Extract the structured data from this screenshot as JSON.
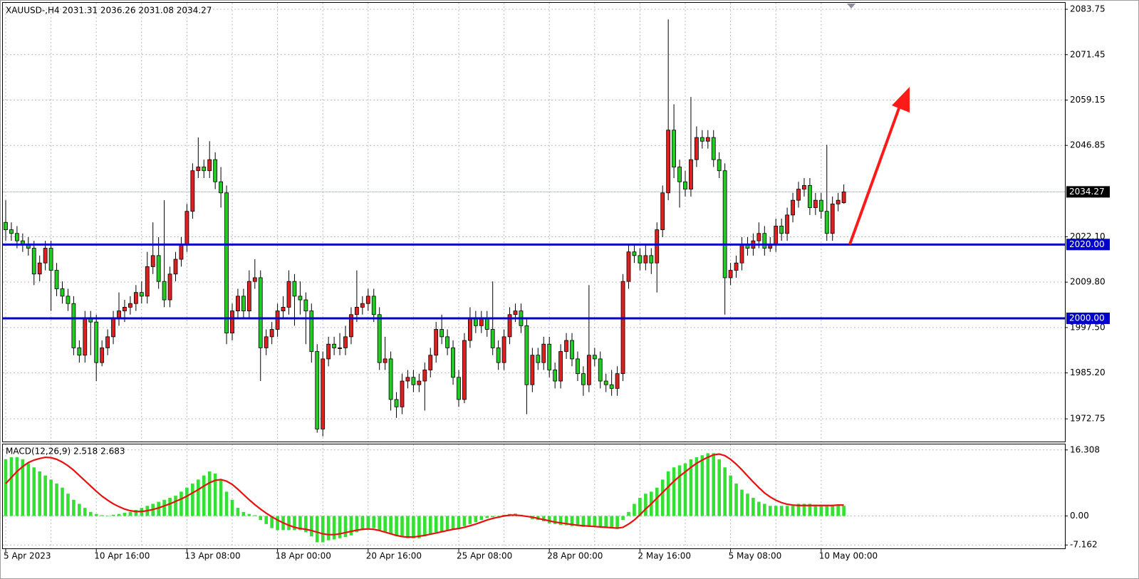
{
  "chart_data": [
    {
      "type": "candlestick",
      "title": "XAUUSD-,H4  2031.31 2036.26 2031.08 2034.27",
      "categories": [
        "5 Apr 2023",
        null,
        null,
        null,
        null,
        null,
        null,
        null,
        null,
        null,
        null,
        null,
        null,
        null,
        null,
        null,
        "10 Apr 16:00",
        null,
        null,
        null,
        null,
        null,
        null,
        null,
        null,
        null,
        null,
        null,
        null,
        null,
        null,
        null,
        "13 Apr 08:00",
        null,
        null,
        null,
        null,
        null,
        null,
        null,
        null,
        null,
        null,
        null,
        null,
        null,
        null,
        null,
        "18 Apr 00:00",
        null,
        null,
        null,
        null,
        null,
        null,
        null,
        null,
        null,
        null,
        null,
        null,
        null,
        null,
        null,
        "20 Apr 16:00",
        null,
        null,
        null,
        null,
        null,
        null,
        null,
        null,
        null,
        null,
        null,
        null,
        null,
        null,
        null,
        "25 Apr 08:00",
        null,
        null,
        null,
        null,
        null,
        null,
        null,
        null,
        null,
        null,
        null,
        null,
        null,
        null,
        null,
        "28 Apr 00:00",
        null,
        null,
        null,
        null,
        null,
        null,
        null,
        null,
        null,
        null,
        null,
        null,
        null,
        null,
        null,
        "2 May 16:00",
        null,
        null,
        null,
        null,
        null,
        null,
        null,
        null,
        null,
        null,
        null,
        null,
        null,
        null,
        null,
        "5 May 08:00",
        null,
        null,
        null,
        null,
        null,
        null,
        null,
        null,
        null,
        null,
        null,
        null,
        null,
        null,
        null,
        "10 May 00:00",
        null,
        null,
        null,
        null
      ],
      "open": [
        2026,
        2024,
        2023,
        2021,
        2020,
        2019,
        2012,
        2015,
        2019,
        2013,
        2008,
        2006,
        2004,
        1992,
        1990,
        2000,
        1999,
        1988,
        1992,
        1995,
        2000,
        2002,
        2003,
        2004,
        2007,
        2006,
        2014,
        2017,
        2010,
        2005,
        2012,
        2016,
        2020,
        2029,
        2040,
        2041,
        2040,
        2043,
        2037,
        2034,
        1996,
        2002,
        2006,
        2002,
        2010,
        2011,
        1992,
        1995,
        1997,
        2002,
        2003,
        2010,
        2006,
        2005,
        2002,
        1991,
        1970,
        1989,
        1993,
        1992,
        1992,
        1995,
        2001,
        2003,
        2004,
        2006,
        2001,
        1988,
        1989,
        1978,
        1976,
        1983,
        1984,
        1982,
        1983,
        1986,
        1990,
        1997,
        1995,
        1992,
        1984,
        1978,
        1994,
        2000,
        1998,
        2000,
        1997,
        1992,
        1988,
        1995,
        2001,
        2002,
        1998,
        1982,
        1990,
        1988,
        1993,
        1986,
        1983,
        1991,
        1994,
        1989,
        1985,
        1982,
        1990,
        1989,
        1983,
        1982,
        1981,
        1985,
        2010,
        2018,
        2017,
        2015,
        2017,
        2015,
        2024,
        2034,
        2051,
        2041,
        2037,
        2035,
        2043,
        2049,
        2048,
        2049,
        2043,
        2040,
        2011,
        2013,
        2015,
        2020,
        2019,
        2021,
        2023,
        2019,
        2020,
        2025,
        2023,
        2028,
        2032,
        2035,
        2036,
        2030,
        2032,
        2029,
        2023,
        2031,
        2031.31
      ],
      "high": [
        2032,
        2026,
        2025,
        2023,
        2022,
        2021,
        2017,
        2021,
        2021,
        2015,
        2010,
        2008,
        2006,
        1994,
        2002,
        2002,
        2001,
        1994,
        1997,
        2002,
        2007,
        2005,
        2006,
        2009,
        2010,
        2018,
        2026,
        2022,
        2032,
        2014,
        2018,
        2022,
        2031,
        2042,
        2049,
        2043,
        2048,
        2045,
        2041,
        2036,
        2004,
        2008,
        2008,
        2013,
        2016,
        2013,
        1997,
        1999,
        2004,
        2006,
        2013,
        2012,
        2010,
        2007,
        2004,
        1993,
        1991,
        1995,
        1995,
        1996,
        1998,
        2003,
        2013,
        2006,
        2008,
        2008,
        2003,
        1995,
        1991,
        1980,
        1985,
        1986,
        1986,
        1985,
        1988,
        1992,
        1999,
        2001,
        1997,
        1994,
        1986,
        1996,
        2003,
        2002,
        2002,
        2002,
        2010,
        1994,
        1997,
        2003,
        2004,
        2004,
        2000,
        1992,
        1992,
        1995,
        1995,
        1988,
        1993,
        1996,
        1996,
        1991,
        1987,
        2009,
        1992,
        1991,
        1985,
        1986,
        1987,
        2012,
        2020,
        2020,
        2019,
        2020,
        2019,
        2026,
        2036,
        2081,
        2058,
        2043,
        2040,
        2060,
        2052,
        2051,
        2051,
        2051,
        2045,
        2042,
        2015,
        2017,
        2022,
        2022,
        2023,
        2026,
        2025,
        2022,
        2027,
        2027,
        2030,
        2034,
        2037,
        2038,
        2038,
        2034,
        2034,
        2047,
        2033,
        2034,
        2036.26
      ],
      "low": [
        2021,
        2021,
        2019,
        2018,
        2017,
        2009,
        2010,
        2013,
        2002,
        2006,
        2004,
        2002,
        1990,
        1988,
        1988,
        1990,
        1983,
        1987,
        1990,
        1993,
        1998,
        1999,
        2001,
        2002,
        2004,
        2004,
        2012,
        2008,
        2003,
        2003,
        2010,
        2014,
        2018,
        2027,
        2038,
        2038,
        2038,
        2035,
        2030,
        1993,
        1994,
        2000,
        2000,
        2000,
        2008,
        1983,
        1990,
        1993,
        1995,
        2000,
        2001,
        1998,
        2001,
        1993,
        1988,
        1969,
        1968,
        1987,
        1990,
        1990,
        1990,
        1993,
        1999,
        2001,
        2002,
        1999,
        1986,
        1986,
        1975,
        1973,
        1974,
        1981,
        1980,
        1980,
        1975,
        1984,
        1988,
        1993,
        1990,
        1982,
        1976,
        1977,
        1992,
        1996,
        1996,
        1995,
        1990,
        1986,
        1986,
        1993,
        1999,
        1996,
        1974,
        1980,
        1986,
        1986,
        1984,
        1981,
        1981,
        1989,
        1987,
        1983,
        1979,
        1980,
        1987,
        1981,
        1980,
        1979,
        1979,
        1983,
        2008,
        2015,
        2013,
        2013,
        2012,
        2007,
        2022,
        2032,
        2038,
        2030,
        2033,
        2033,
        2041,
        2046,
        2046,
        2041,
        2038,
        2001,
        2009,
        2011,
        2013,
        2017,
        2017,
        2019,
        2017,
        2018,
        2018,
        2021,
        2021,
        2026,
        2030,
        2033,
        2028,
        2028,
        2027,
        2021,
        2021,
        2029,
        2031.08
      ],
      "close": [
        2024,
        2023,
        2021,
        2020,
        2019,
        2012,
        2015,
        2019,
        2013,
        2008,
        2006,
        2004,
        1992,
        1990,
        2000,
        1999,
        1988,
        1992,
        1995,
        2000,
        2002,
        2003,
        2004,
        2007,
        2006,
        2014,
        2017,
        2010,
        2005,
        2012,
        2016,
        2020,
        2029,
        2040,
        2041,
        2040,
        2043,
        2037,
        2034,
        1996,
        2002,
        2006,
        2002,
        2010,
        2011,
        1992,
        1995,
        1997,
        2002,
        2003,
        2010,
        2006,
        2005,
        2002,
        1991,
        1970,
        1989,
        1993,
        1992,
        1992,
        1995,
        2001,
        2003,
        2004,
        2006,
        2001,
        1988,
        1989,
        1978,
        1976,
        1983,
        1984,
        1982,
        1983,
        1986,
        1990,
        1997,
        1995,
        1992,
        1984,
        1978,
        1994,
        2000,
        1998,
        2000,
        1997,
        1992,
        1988,
        1995,
        2001,
        2002,
        1998,
        1982,
        1990,
        1988,
        1993,
        1986,
        1983,
        1991,
        1994,
        1989,
        1985,
        1982,
        1990,
        1989,
        1983,
        1982,
        1981,
        1985,
        2010,
        2018,
        2017,
        2015,
        2017,
        2015,
        2024,
        2034,
        2051,
        2041,
        2037,
        2035,
        2043,
        2049,
        2048,
        2049,
        2043,
        2040,
        2011,
        2013,
        2015,
        2020,
        2019,
        2021,
        2023,
        2019,
        2020,
        2025,
        2023,
        2028,
        2032,
        2035,
        2036,
        2030,
        2032,
        2029,
        2023,
        2031,
        2032,
        2034.27
      ],
      "up_color": "#e02020",
      "down_color": "#22cc22",
      "ylim": [
        1966.6,
        2085.3
      ],
      "yticks": [
        2083.75,
        2071.45,
        2059.15,
        2046.85,
        {
          "value": 2022.1,
          "label": "2022.10"
        },
        {
          "value": 2009.8,
          "label": "2009.80"
        },
        {
          "value": 1997.5,
          "label": "1997.50"
        },
        {
          "value": 1985.2,
          "label": "1985.20"
        },
        1972.75
      ],
      "grid": true,
      "levels": [
        {
          "value": 2020,
          "label": "2020.00",
          "color": "#0000c8"
        },
        {
          "value": 2000,
          "label": "2000.00",
          "color": "#0000c8"
        }
      ],
      "last_price": 2034.27
    },
    {
      "type": "macd",
      "title": "MACD(12,26,9) 2.518 2.683",
      "series": [
        {
          "type": "bar",
          "color": "#33e033",
          "values": [
            14,
            14.5,
            14.5,
            14,
            13,
            12,
            11,
            10,
            9,
            8,
            7,
            5.5,
            4,
            3,
            2,
            1,
            0.5,
            0.2,
            0.1,
            0.3,
            0.5,
            0.8,
            1,
            1.5,
            2,
            2.5,
            3,
            3.5,
            4,
            4.5,
            5,
            6,
            7,
            8,
            9,
            10,
            11,
            10.5,
            9,
            6,
            4,
            2,
            1,
            0.5,
            0.2,
            -1,
            -2,
            -3,
            -3.5,
            -3.5,
            -3.5,
            -3.5,
            -3.5,
            -4,
            -5,
            -6.5,
            -6.5,
            -6,
            -5.8,
            -5.5,
            -5.2,
            -4.8,
            -4,
            -3.5,
            -3,
            -3,
            -3.5,
            -4,
            -4.5,
            -5,
            -5.2,
            -5.5,
            -5.5,
            -5.5,
            -5,
            -4.5,
            -4,
            -3.8,
            -3.5,
            -3.2,
            -3,
            -2.5,
            -2,
            -1.5,
            -1,
            -0.5,
            -0.3,
            0,
            0.3,
            0.5,
            0.6,
            0.3,
            -0.2,
            -0.8,
            -1,
            -1.3,
            -1.8,
            -2,
            -2.2,
            -2.3,
            -2.5,
            -2.5,
            -2.7,
            -2.6,
            -2.7,
            -2.8,
            -3,
            -3,
            -3.2,
            -1,
            1,
            3,
            4.5,
            5.5,
            6,
            7,
            9,
            11,
            12,
            12.5,
            13,
            14,
            14.5,
            15,
            15.5,
            15.5,
            14,
            12,
            10,
            8,
            6.5,
            5.5,
            4.5,
            3.5,
            3,
            2.5,
            2.5,
            2.5,
            2.5,
            2.5,
            3,
            3,
            3,
            2.8,
            2.8,
            2.5,
            2.5,
            2.5,
            2.518
          ]
        },
        {
          "type": "line",
          "color": "#e81010",
          "values": [
            8,
            9.5,
            11,
            12.2,
            13.2,
            13.8,
            14.2,
            14.5,
            14.4,
            14,
            13.3,
            12.4,
            11.3,
            10,
            8.7,
            7.4,
            6.1,
            4.9,
            3.9,
            3,
            2.3,
            1.7,
            1.3,
            1.1,
            1.1,
            1.3,
            1.6,
            2,
            2.5,
            3,
            3.6,
            4.2,
            4.9,
            5.7,
            6.5,
            7.4,
            8.2,
            8.8,
            9,
            8.6,
            7.8,
            6.6,
            5.3,
            4,
            2.8,
            1.7,
            0.7,
            -0.2,
            -1,
            -1.7,
            -2.3,
            -2.8,
            -3.1,
            -3.3,
            -3.6,
            -4,
            -4.4,
            -4.6,
            -4.6,
            -4.4,
            -4.1,
            -3.8,
            -3.5,
            -3.3,
            -3.2,
            -3.3,
            -3.6,
            -4,
            -4.4,
            -4.8,
            -5.1,
            -5.2,
            -5.2,
            -5,
            -4.8,
            -4.5,
            -4.2,
            -3.9,
            -3.6,
            -3.3,
            -3.1,
            -2.8,
            -2.4,
            -2,
            -1.5,
            -1,
            -0.6,
            -0.3,
            0,
            0.2,
            0.2,
            0.1,
            -0.1,
            -0.3,
            -0.6,
            -0.9,
            -1.2,
            -1.5,
            -1.7,
            -1.9,
            -2.1,
            -2.3,
            -2.4,
            -2.5,
            -2.6,
            -2.7,
            -2.8,
            -2.9,
            -3,
            -2.8,
            -2,
            -1,
            0.3,
            1.7,
            3,
            4.4,
            5.8,
            7.2,
            8.6,
            9.8,
            10.9,
            12,
            13,
            13.8,
            14.5,
            15.1,
            15.3,
            14.9,
            14,
            12.8,
            11.4,
            9.9,
            8.4,
            7,
            5.7,
            4.7,
            3.9,
            3.3,
            2.9,
            2.7,
            2.6,
            2.6,
            2.6,
            2.6,
            2.6,
            2.6,
            2.6,
            2.7,
            2.683
          ]
        }
      ],
      "ylim": [
        -8,
        17.5
      ],
      "yticks": [
        16.308,
        {
          "value": 0,
          "label": "0.00"
        },
        -7.162
      ],
      "grid": true
    }
  ]
}
